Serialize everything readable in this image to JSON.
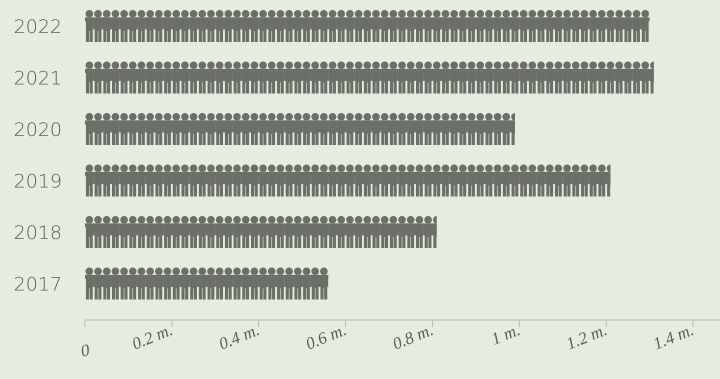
{
  "colors": {
    "background": "#e4ede0",
    "icon": "#6b6f67",
    "text": "#5a5e57",
    "axis": "#b5bcb0"
  },
  "chart_data": {
    "type": "bar",
    "style": "pictogram",
    "icon": "person-icon",
    "icon_unit": 0.02,
    "orientation": "horizontal",
    "categories": [
      "2022",
      "2021",
      "2020",
      "2019",
      "2018",
      "2017"
    ],
    "values": [
      1.3,
      1.31,
      0.99,
      1.21,
      0.81,
      0.56
    ],
    "xlim": [
      0,
      1.4
    ],
    "x_ticks": [
      0,
      0.2,
      0.4,
      0.6,
      0.8,
      1.0,
      1.2,
      1.4
    ],
    "x_tick_labels": [
      "0",
      "0.2 m.",
      "0.4 m.",
      "0.6 m.",
      "0.8 m.",
      "1 m.",
      "1.2 m.",
      "1.4 m."
    ],
    "title": "",
    "xlabel": "",
    "ylabel": "",
    "grid": false
  }
}
